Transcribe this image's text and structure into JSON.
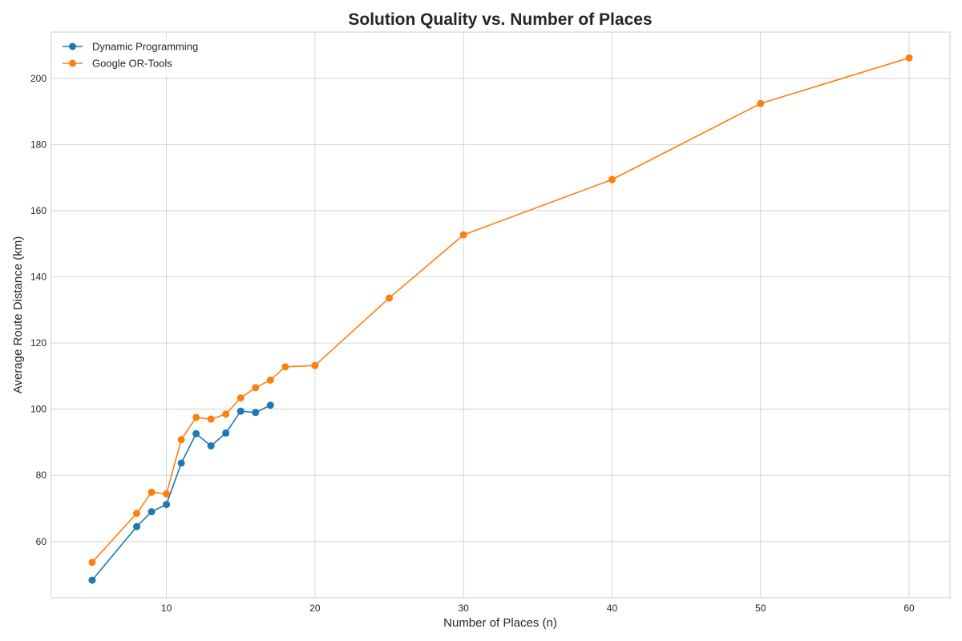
{
  "chart_data": {
    "type": "line",
    "title": "Solution Quality vs. Number of Places",
    "xlabel": "Number of Places (n)",
    "ylabel": "Average Route Distance (km)",
    "xlim": [
      2.25,
      62.75
    ],
    "ylim": [
      43,
      214
    ],
    "xticks": [
      10,
      20,
      30,
      40,
      50,
      60
    ],
    "yticks": [
      60,
      80,
      100,
      120,
      140,
      160,
      180,
      200
    ],
    "grid": true,
    "legend_position": "top-left",
    "series": [
      {
        "name": "Dynamic Programming",
        "color": "#1f77b4",
        "marker": "circle",
        "x": [
          5,
          8,
          9,
          10,
          11,
          12,
          13,
          14,
          15,
          16,
          17
        ],
        "y": [
          48.3,
          64.5,
          69.0,
          71.2,
          83.7,
          92.6,
          88.9,
          92.8,
          99.4,
          99.0,
          101.2
        ]
      },
      {
        "name": "Google OR-Tools",
        "color": "#ff7f0e",
        "marker": "circle",
        "x": [
          5,
          8,
          9,
          10,
          11,
          12,
          13,
          14,
          15,
          16,
          17,
          18,
          20,
          25,
          30,
          40,
          50,
          60
        ],
        "y": [
          53.7,
          68.5,
          74.9,
          74.4,
          90.8,
          97.5,
          97.0,
          98.5,
          103.4,
          106.5,
          108.8,
          112.8,
          113.2,
          133.6,
          152.7,
          169.4,
          192.4,
          206.2
        ]
      }
    ]
  }
}
